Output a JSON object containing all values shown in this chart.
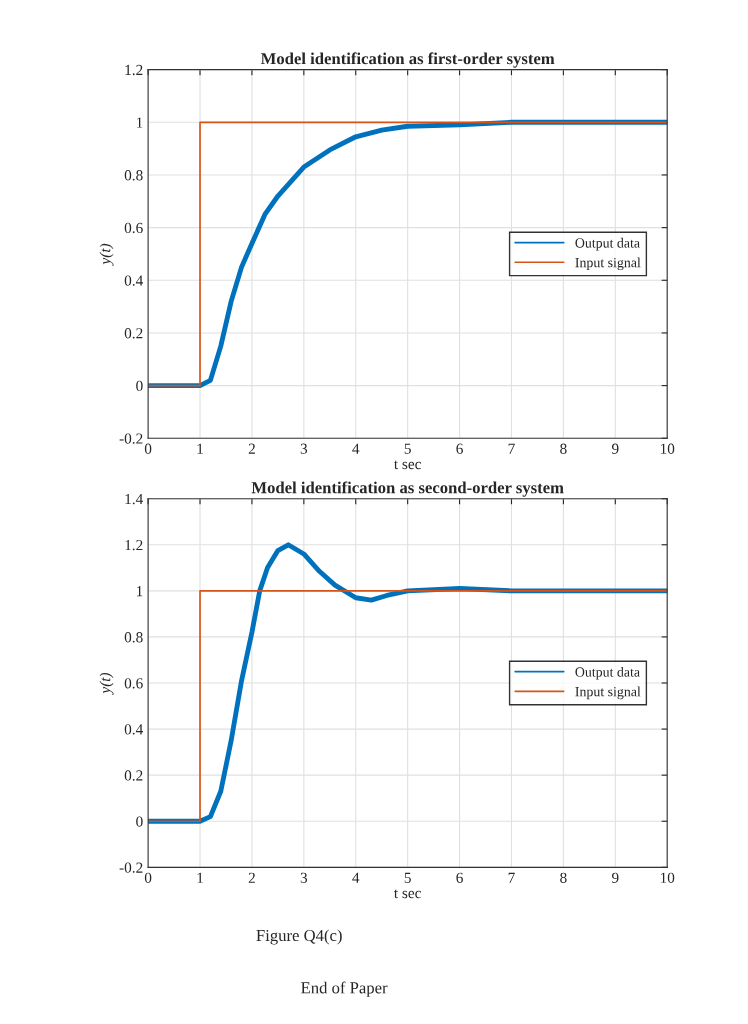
{
  "chart_data": [
    {
      "type": "line",
      "title": "Model identification as first-order system",
      "xlabel": "t sec",
      "ylabel": "y(t)",
      "xlim": [
        0,
        10
      ],
      "ylim": [
        -0.2,
        1.2
      ],
      "xticks": [
        0,
        1,
        2,
        3,
        4,
        5,
        6,
        7,
        8,
        9,
        10
      ],
      "yticks": [
        -0.2,
        0,
        0.2,
        0.4,
        0.6,
        0.8,
        1,
        1.2
      ],
      "grid": true,
      "legend": "right",
      "series": [
        {
          "name": "Output data",
          "color": "#0072bd",
          "x": [
            0,
            0.5,
            1,
            1.2,
            1.4,
            1.6,
            1.8,
            2,
            2.25,
            2.5,
            3,
            3.5,
            4,
            4.5,
            5,
            6,
            7,
            8,
            9,
            10
          ],
          "values": [
            0,
            0,
            0,
            0.02,
            0.15,
            0.32,
            0.45,
            0.54,
            0.65,
            0.72,
            0.83,
            0.895,
            0.945,
            0.97,
            0.985,
            0.99,
            1,
            1,
            1,
            1
          ]
        },
        {
          "name": "Input signal",
          "type": "step",
          "color": "#d95319",
          "x": [
            0,
            1,
            10
          ],
          "values": [
            0,
            1,
            1
          ]
        }
      ]
    },
    {
      "type": "line",
      "title": "Model identification as second-order system",
      "xlabel": "t sec",
      "ylabel": "y(t)",
      "xlim": [
        0,
        10
      ],
      "ylim": [
        -0.2,
        1.4
      ],
      "xticks": [
        0,
        1,
        2,
        3,
        4,
        5,
        6,
        7,
        8,
        9,
        10
      ],
      "yticks": [
        -0.2,
        0,
        0.2,
        0.4,
        0.6,
        0.8,
        1,
        1.2,
        1.4
      ],
      "grid": true,
      "legend": "right",
      "annotations": [
        "Figure Q4(c)",
        "End of Paper"
      ],
      "series": [
        {
          "name": "Output data",
          "color": "#0072bd",
          "x": [
            0,
            0.5,
            1,
            1.2,
            1.4,
            1.6,
            1.8,
            2,
            2.15,
            2.3,
            2.5,
            2.7,
            3,
            3.3,
            3.6,
            4,
            4.3,
            4.6,
            5,
            6,
            7,
            8,
            9,
            10
          ],
          "values": [
            0,
            0,
            0,
            0.02,
            0.13,
            0.35,
            0.61,
            0.82,
            1,
            1.1,
            1.175,
            1.2,
            1.16,
            1.085,
            1.025,
            0.97,
            0.96,
            0.98,
            1,
            1.01,
            1,
            1,
            1,
            1
          ]
        },
        {
          "name": "Input signal",
          "type": "step",
          "color": "#d95319",
          "x": [
            0,
            1,
            10
          ],
          "values": [
            0,
            1,
            1
          ]
        }
      ]
    }
  ]
}
